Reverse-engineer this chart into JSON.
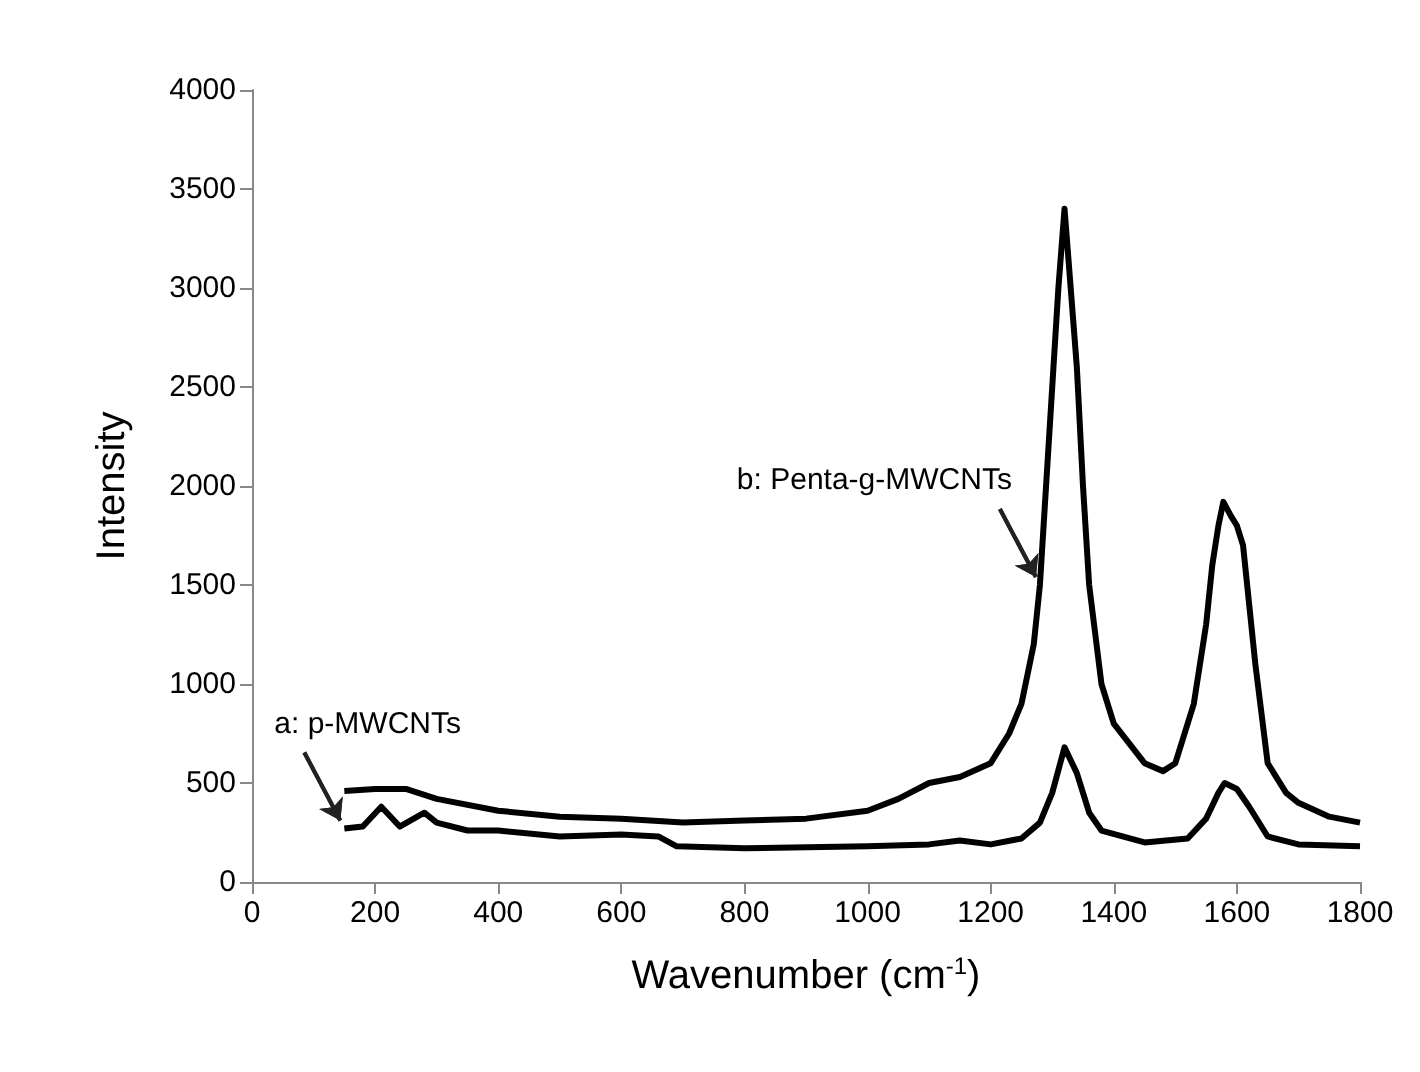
{
  "chart_data": {
    "type": "line",
    "xlabel": "Wavenumber (cm$^{-1}$)",
    "ylabel": "Intensity",
    "xlim": [
      0,
      1800
    ],
    "xticks": [
      0,
      200,
      400,
      600,
      800,
      1000,
      1200,
      1400,
      1600,
      1800
    ],
    "ylim": [
      0,
      4000
    ],
    "yticks": [
      0,
      500,
      1000,
      1500,
      2000,
      2500,
      3000,
      3500,
      4000
    ],
    "grid": false,
    "marker": "none",
    "line_style": "solid",
    "series": [
      {
        "color": "#000000",
        "x": [
          150,
          200,
          250,
          300,
          400,
          500,
          600,
          700,
          800,
          900,
          1000,
          1050,
          1100,
          1150,
          1200,
          1230,
          1250,
          1270,
          1280,
          1290,
          1300,
          1310,
          1320,
          1330,
          1340,
          1350,
          1360,
          1380,
          1400,
          1450,
          1480,
          1500,
          1530,
          1550,
          1560,
          1570,
          1578,
          1590,
          1600,
          1610,
          1620,
          1630,
          1650,
          1680,
          1700,
          1750,
          1800
        ],
        "values": [
          460,
          470,
          470,
          420,
          360,
          330,
          320,
          300,
          310,
          320,
          360,
          420,
          500,
          530,
          600,
          750,
          900,
          1200,
          1500,
          2000,
          2500,
          3000,
          3400,
          3000,
          2600,
          2000,
          1500,
          1000,
          800,
          600,
          560,
          600,
          900,
          1300,
          1600,
          1800,
          1920,
          1850,
          1800,
          1700,
          1400,
          1100,
          600,
          450,
          400,
          330,
          300
        ]
      },
      {
        "color": "#000000",
        "x": [
          150,
          180,
          210,
          240,
          280,
          300,
          350,
          400,
          500,
          600,
          660,
          690,
          800,
          1000,
          1100,
          1150,
          1200,
          1250,
          1280,
          1300,
          1320,
          1340,
          1360,
          1380,
          1450,
          1520,
          1550,
          1570,
          1580,
          1600,
          1620,
          1650,
          1700,
          1800
        ],
        "values": [
          270,
          280,
          380,
          280,
          350,
          300,
          260,
          260,
          230,
          240,
          230,
          180,
          170,
          180,
          190,
          210,
          190,
          220,
          300,
          450,
          680,
          550,
          350,
          260,
          200,
          220,
          320,
          450,
          500,
          470,
          380,
          230,
          190,
          180
        ]
      }
    ],
    "annotations": [
      {
        "text": "a: p-MWCNTs",
        "x": 150,
        "y": 270
      },
      {
        "text": "b: Penta-g-MWCNTs",
        "x": 1280,
        "y": 1500
      }
    ]
  }
}
